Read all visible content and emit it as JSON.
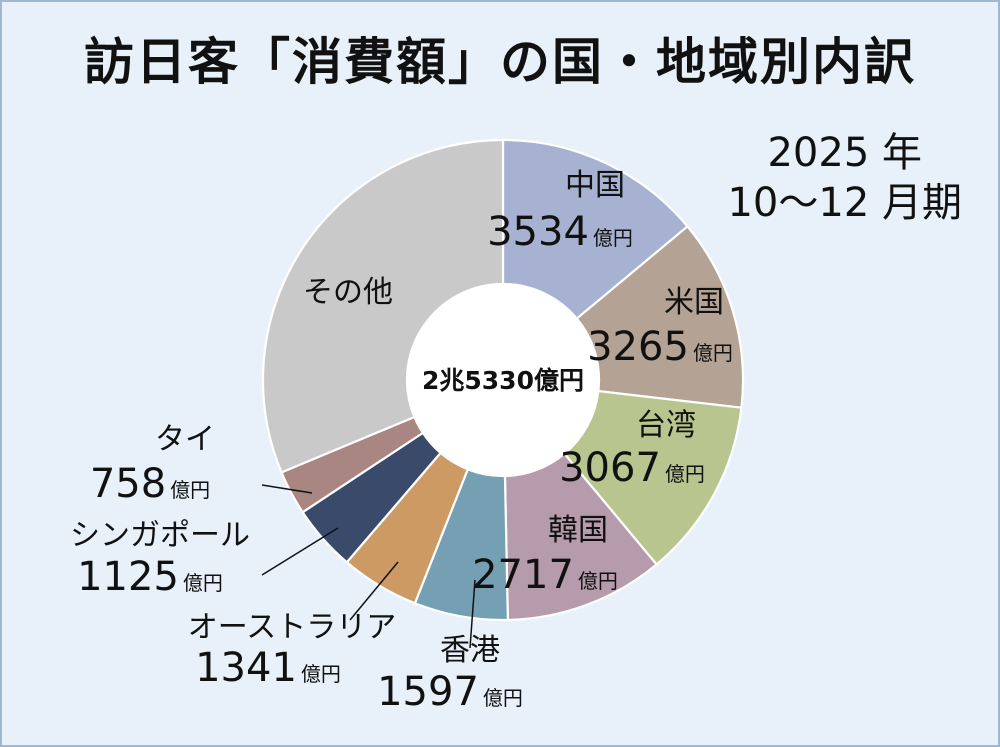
{
  "title": "訪日客「消費額」の国・地域別内訳",
  "period": {
    "year": "2025 年",
    "quarter": "10〜12 月期"
  },
  "chart_data": {
    "type": "pie",
    "title": "訪日客「消費額」の国・地域別内訳",
    "center_label": "2兆5330億円",
    "total": 25330,
    "unit": "億円",
    "slices": [
      {
        "name": "中国",
        "value": 3534,
        "color": "#a7b1d2"
      },
      {
        "name": "米国",
        "value": 3265,
        "color": "#b4a394"
      },
      {
        "name": "台湾",
        "value": 3067,
        "color": "#b8c58f"
      },
      {
        "name": "韓国",
        "value": 2717,
        "color": "#b59bab"
      },
      {
        "name": "香港",
        "value": 1597,
        "color": "#759fb2"
      },
      {
        "name": "オーストラリア",
        "value": 1341,
        "color": "#cc9a62"
      },
      {
        "name": "シンガポール",
        "value": 1125,
        "color": "#3a4a6b"
      },
      {
        "name": "タイ",
        "value": 758,
        "color": "#a98682"
      },
      {
        "name": "その他",
        "value": 7926,
        "color": "#c9c9ca"
      }
    ]
  }
}
